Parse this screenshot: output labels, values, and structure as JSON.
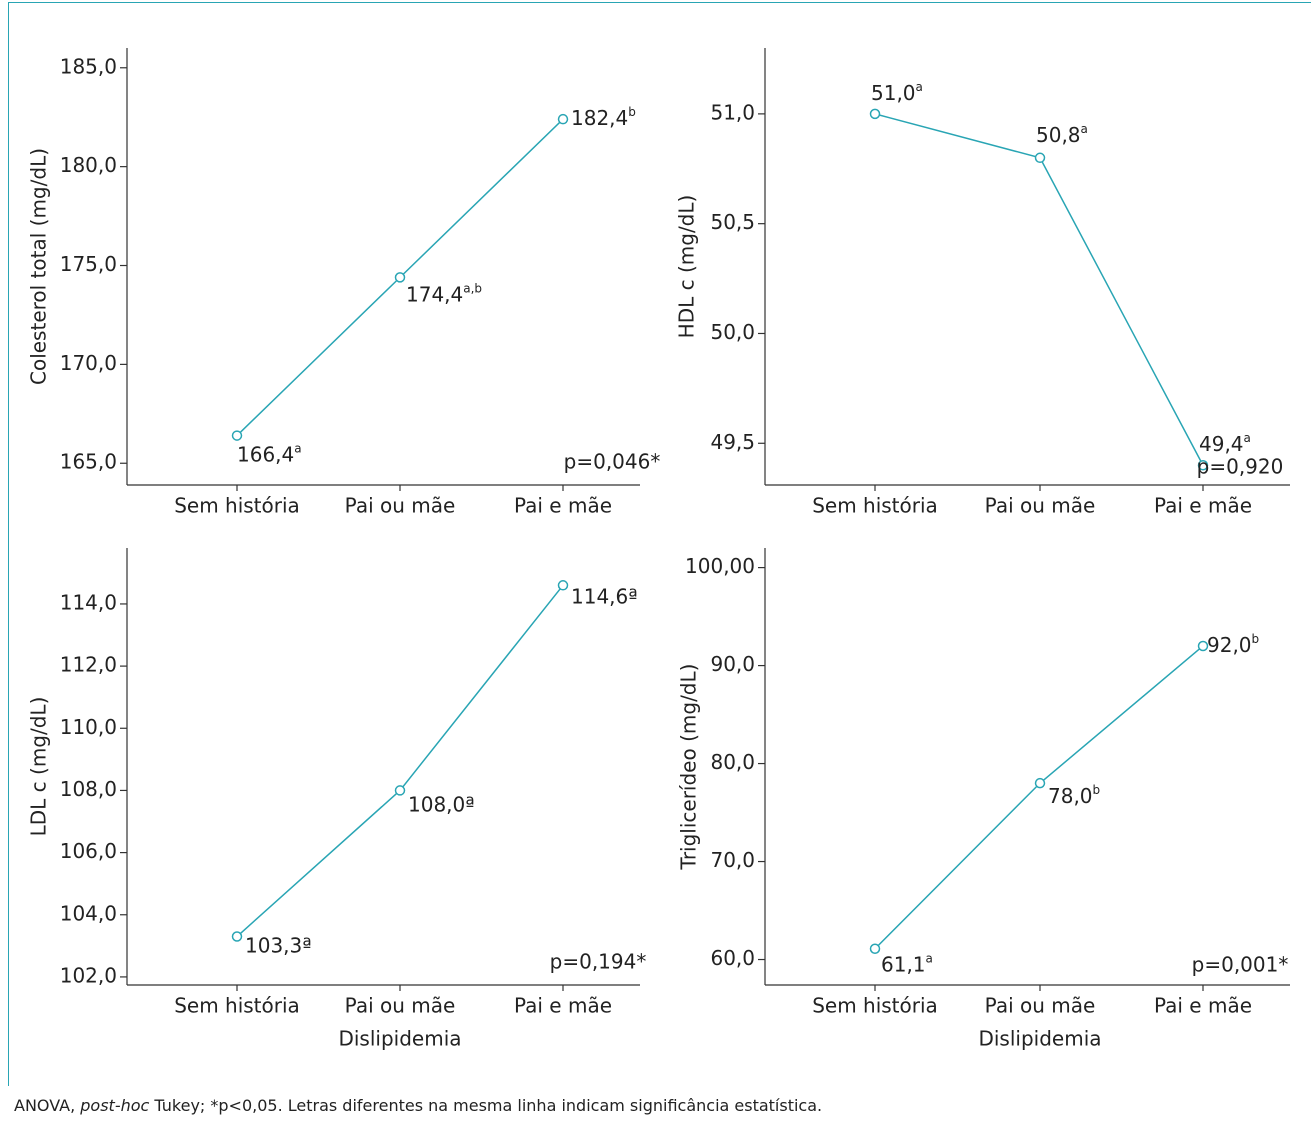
{
  "chart_data": [
    {
      "type": "line",
      "y_label": "Colesterol total (mg/dL)",
      "categories": [
        "Sem história",
        "Pai ou mãe",
        "Pai e mãe"
      ],
      "values": [
        166.4,
        174.4,
        182.4
      ],
      "value_labels": [
        "166,4",
        "174,4",
        "182,4"
      ],
      "superscripts": [
        "a",
        "a,b",
        "b"
      ],
      "color": "#29a5b4",
      "annotation": "p=0,046*",
      "ylim": [
        163.9,
        186
      ],
      "yticks": [
        {
          "value": 165,
          "label": "165,0"
        },
        {
          "value": 170,
          "label": "170,0"
        },
        {
          "value": 175,
          "label": "175,0"
        },
        {
          "value": 180,
          "label": "180,0"
        },
        {
          "value": 185,
          "label": "185,0"
        }
      ]
    },
    {
      "type": "line",
      "y_label": "HDL c (mg/dL)",
      "categories": [
        "Sem história",
        "Pai ou mãe",
        "Pai e mãe"
      ],
      "values": [
        51.0,
        50.8,
        49.4
      ],
      "value_labels": [
        "51,0",
        "50,8",
        "49,4"
      ],
      "superscripts": [
        "a",
        "a",
        "a"
      ],
      "color": "#29a5b4",
      "annotation": "p=0,920",
      "ylim": [
        49.31,
        51.3
      ],
      "yticks": [
        {
          "value": 49.5,
          "label": "49,5"
        },
        {
          "value": 50,
          "label": "50,0"
        },
        {
          "value": 50.5,
          "label": "50,5"
        },
        {
          "value": 51,
          "label": "51,0"
        }
      ]
    },
    {
      "type": "line",
      "y_label": "LDL c (mg/dL)",
      "x_label": "Dislipidemia",
      "categories": [
        "Sem história",
        "Pai ou mãe",
        "Pai e mãe"
      ],
      "values": [
        103.3,
        108.0,
        114.6
      ],
      "value_labels": [
        "103,3ª",
        "108,0ª",
        "114,6ª"
      ],
      "color": "#29a5b4",
      "annotation": "p=0,194*",
      "ylim": [
        101.74,
        115.8
      ],
      "yticks": [
        {
          "value": 102,
          "label": "102,0"
        },
        {
          "value": 104,
          "label": "104,0"
        },
        {
          "value": 106,
          "label": "106,0"
        },
        {
          "value": 108,
          "label": "108,0"
        },
        {
          "value": 110,
          "label": "110,0"
        },
        {
          "value": 112,
          "label": "112,0"
        },
        {
          "value": 114,
          "label": "114,0"
        }
      ]
    },
    {
      "type": "line",
      "y_label": "Triglicerídeo (mg/dL)",
      "x_label": "Dislipidemia",
      "categories": [
        "Sem história",
        "Pai ou mãe",
        "Pai e mãe"
      ],
      "values": [
        61.1,
        78.0,
        92.0
      ],
      "value_labels": [
        "61,1",
        "78,0",
        "92,0"
      ],
      "superscripts": [
        "a",
        "b",
        "b"
      ],
      "color": "#29a5b4",
      "annotation": "p=0,001*",
      "ylim": [
        57.4,
        102
      ],
      "yticks": [
        {
          "value": 60,
          "label": "60,0"
        },
        {
          "value": 70,
          "label": "70,0"
        },
        {
          "value": 80,
          "label": "80,0"
        },
        {
          "value": 90,
          "label": "90,0"
        },
        {
          "value": 100,
          "label": "100,00"
        }
      ]
    }
  ],
  "note": [
    "ANOVA, ",
    "post-hoc",
    " Tukey; *p<0,05. Letras diferentes na mesma linha indicam significância estatística."
  ]
}
